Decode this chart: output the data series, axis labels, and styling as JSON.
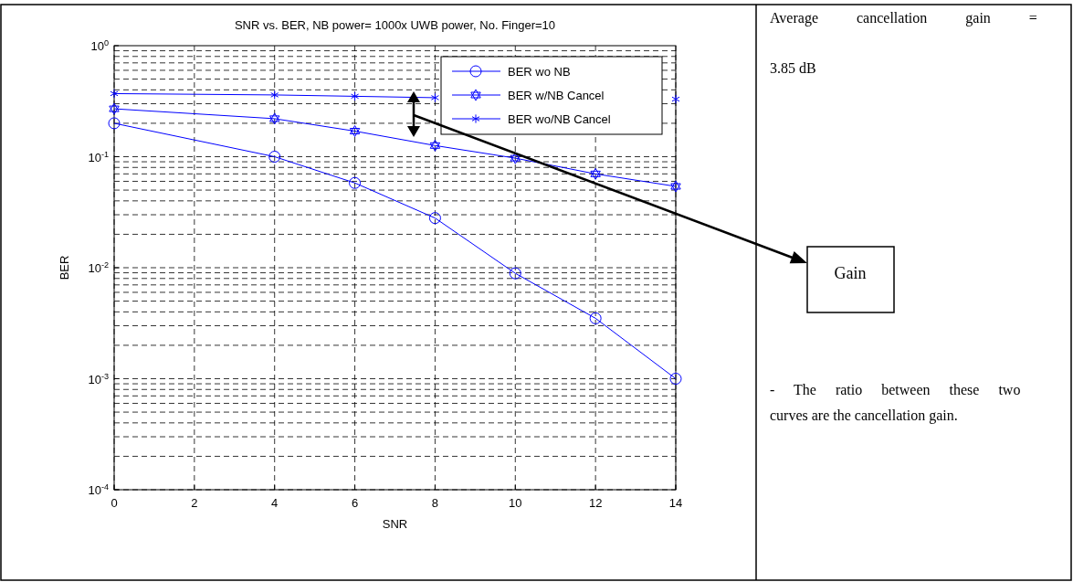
{
  "chart_data": {
    "type": "line",
    "title": "SNR vs. BER, NB power= 1000x UWB power, No. Finger=10",
    "xlabel": "SNR",
    "ylabel": "BER",
    "x": [
      0,
      4,
      6,
      8,
      10,
      12,
      14
    ],
    "series": [
      {
        "name": "BER wo NB",
        "color": "#0000ff",
        "marker": "circle",
        "values": [
          0.2,
          0.1,
          0.058,
          0.028,
          0.0089,
          0.0035,
          0.001
        ]
      },
      {
        "name": "BER w/NB Cancel",
        "color": "#0000ff",
        "marker": "star",
        "values": [
          0.27,
          0.22,
          0.17,
          0.126,
          0.097,
          0.07,
          0.054
        ]
      },
      {
        "name": "BER wo/NB Cancel",
        "color": "#0000ff",
        "marker": "cross",
        "values": [
          0.37,
          0.36,
          0.35,
          0.34,
          null,
          null,
          0.33
        ]
      }
    ],
    "log": "y",
    "xlim": [
      0,
      14
    ],
    "xticks": [
      0,
      2,
      4,
      6,
      8,
      10,
      12,
      14
    ],
    "ylim": [
      0.0001,
      1
    ],
    "yticks": [
      {
        "value": 0.0001,
        "label": "10$^{-4}$"
      },
      {
        "value": 0.001,
        "label": "10$^{-3}$"
      },
      {
        "value": 0.01,
        "label": "10$^{-2}$"
      },
      {
        "value": 0.1,
        "label": "10$^{-1}$"
      },
      {
        "value": 1,
        "label": "10$^{0}$"
      }
    ],
    "grid": true,
    "legend": "top right",
    "line_style": "solid",
    "annotations": [
      "Average cancellation gain =",
      "3.85 dB",
      "Gain",
      "- The ratio between these two",
      "curves are the cancellation gain."
    ]
  }
}
